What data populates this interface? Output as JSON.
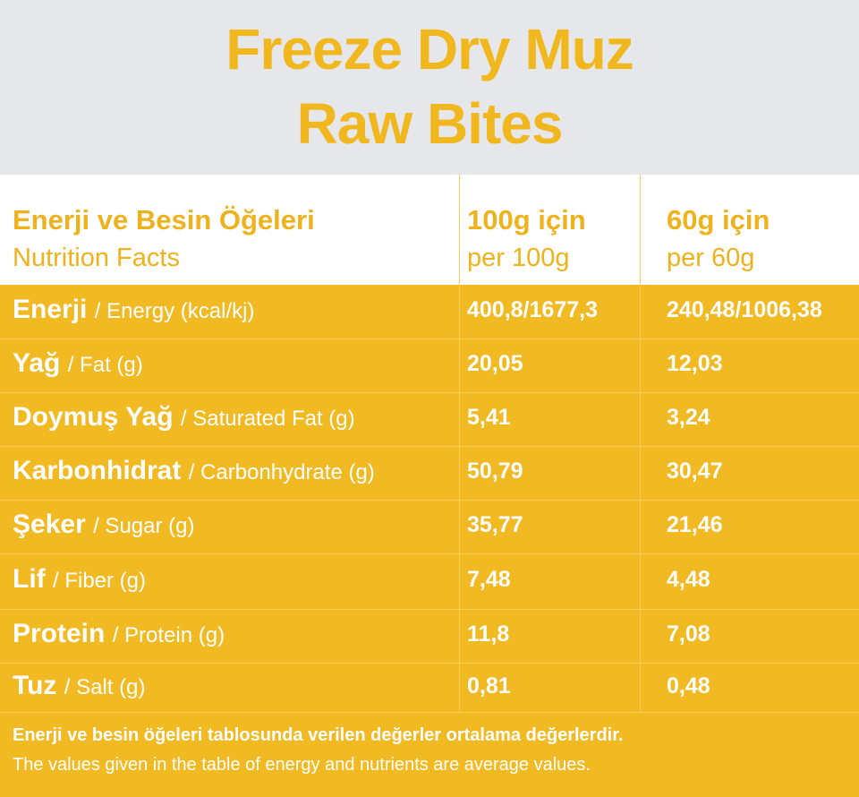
{
  "header": {
    "title": [
      "Freeze Dry Muz",
      "Raw Bites"
    ]
  },
  "table": {
    "columns": [
      {
        "tr": "Enerji ve Besin Öğeleri",
        "en": "Nutrition Facts"
      },
      {
        "tr": "100g için",
        "en": "per 100g"
      },
      {
        "tr": "60g için",
        "en": "per 60g"
      }
    ],
    "rows": [
      {
        "tr": "Enerji",
        "en": "/ Energy (kcal/kj)",
        "per100": "400,8/1677,3",
        "per60": "240,48/1006,38"
      },
      {
        "tr": "Yağ",
        "en": "/ Fat (g)",
        "per100": "20,05",
        "per60": "12,03"
      },
      {
        "tr": "Doymuş Yağ",
        "en": "/ Saturated Fat (g)",
        "per100": "5,41",
        "per60": "3,24"
      },
      {
        "tr": "Karbonhidrat",
        "en": "/ Carbonhydrate (g)",
        "per100": "50,79",
        "per60": "30,47"
      },
      {
        "tr": "Şeker",
        "en": "/ Sugar (g)",
        "per100": "35,77",
        "per60": "21,46"
      },
      {
        "tr": "Lif",
        "en": "/ Fiber (g)",
        "per100": "7,48",
        "per60": "4,48"
      },
      {
        "tr": "Protein",
        "en": "/ Protein (g)",
        "per100": "11,8",
        "per60": "7,08"
      },
      {
        "tr": "Tuz",
        "en": "/ Salt (g)",
        "per100": "0,81",
        "per60": "0,48"
      }
    ]
  },
  "footer": {
    "tr": "Enerji ve besin öğeleri tablosunda verilen değerler ortalama değerlerdir.",
    "en": "The values given in the table of energy and nutrients are average values."
  }
}
